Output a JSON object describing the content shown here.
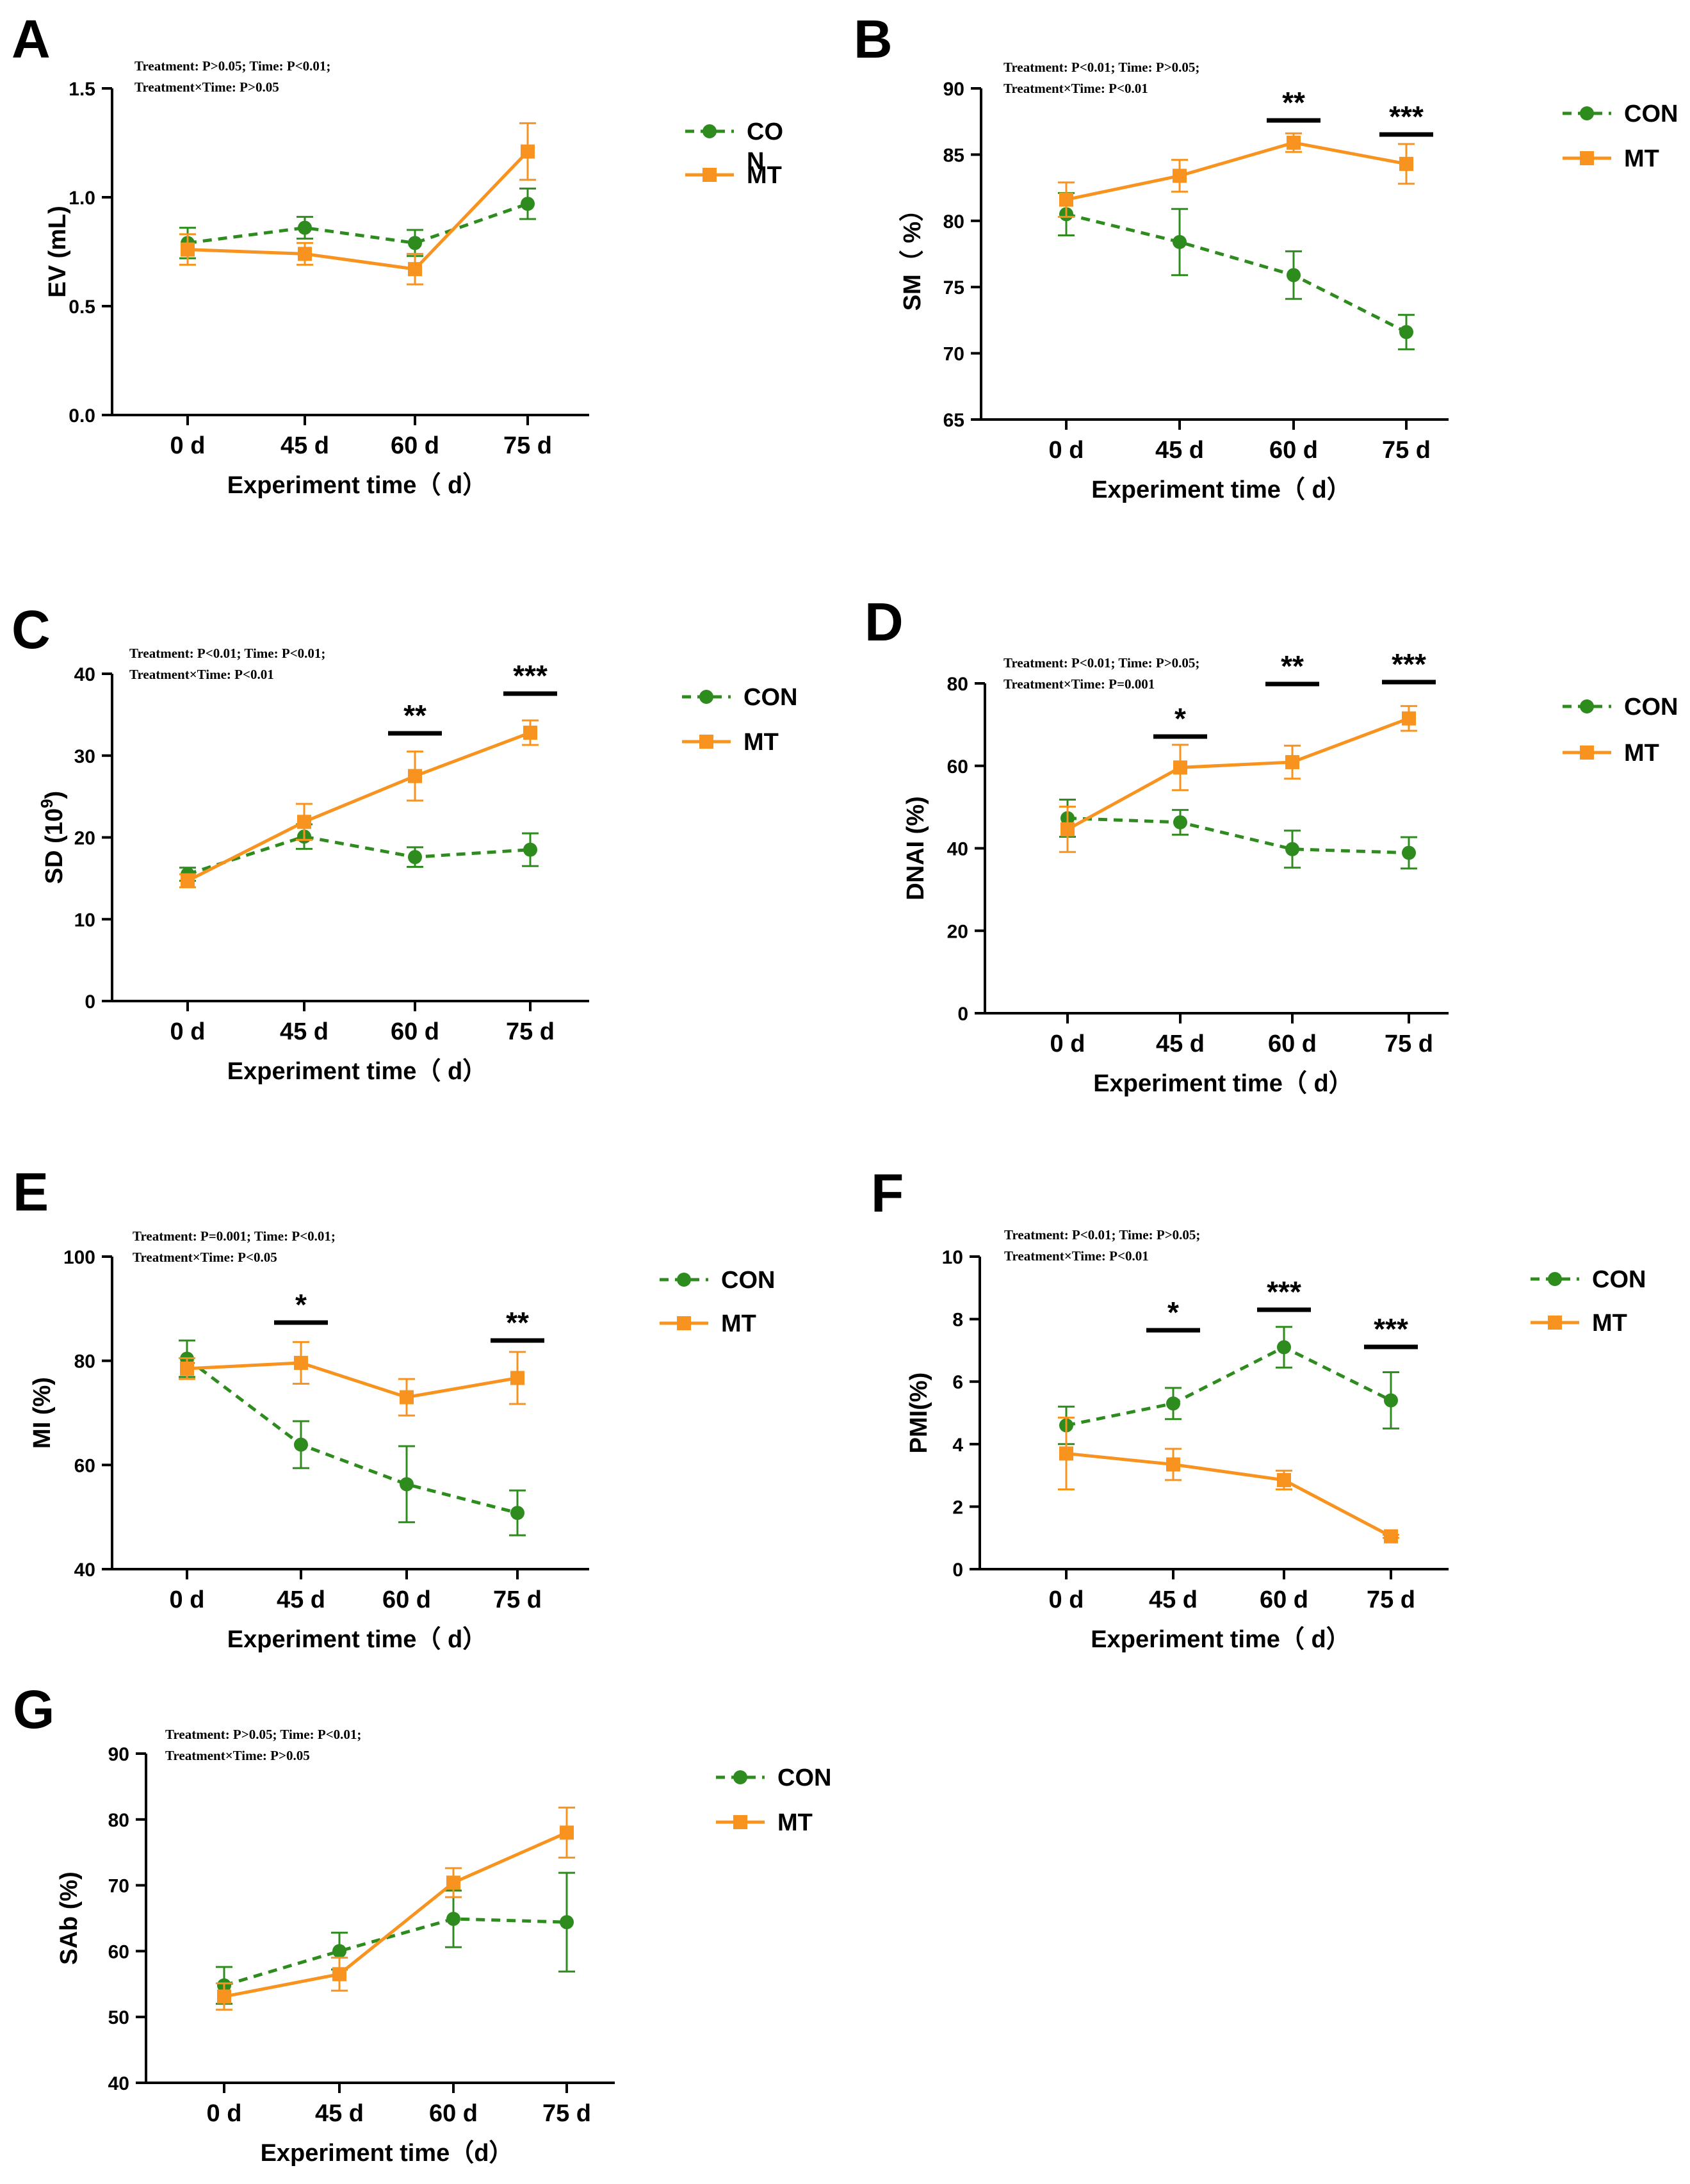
{
  "chart_data": [
    {
      "panel": "A",
      "type": "line",
      "title": "",
      "stats_text": [
        "Treatment: P>0.05; Time: P<0.01;",
        "Treatment×Time: P>0.05"
      ],
      "xlabel": "Experiment time（ d）",
      "ylabel": "EV (mL)",
      "categories": [
        "0 d",
        "45 d",
        "60 d",
        "75 d"
      ],
      "ylim": [
        0,
        1.5
      ],
      "yticks": [
        "0.0",
        "0.5",
        "1.0",
        "1.5"
      ],
      "legend_position": "right",
      "series": [
        {
          "name": "CO\nN",
          "color": "#2E8B1E",
          "style": "dashed",
          "marker": "circle",
          "values": [
            0.79,
            0.86,
            0.79,
            0.97
          ],
          "errors": [
            0.07,
            0.05,
            0.06,
            0.07
          ]
        },
        {
          "name": "MT",
          "color": "#F7931E",
          "style": "solid",
          "marker": "square",
          "values": [
            0.76,
            0.74,
            0.67,
            1.21
          ],
          "errors": [
            0.07,
            0.05,
            0.07,
            0.13
          ]
        }
      ],
      "significance": []
    },
    {
      "panel": "B",
      "type": "line",
      "title": "",
      "stats_text": [
        "Treatment: P<0.01; Time: P>0.05;",
        "Treatment×Time: P<0.01"
      ],
      "xlabel": "Experiment time（ d）",
      "ylabel": "SM（ %）",
      "categories": [
        "0 d",
        "45 d",
        "60 d",
        "75 d"
      ],
      "ylim": [
        65,
        90
      ],
      "yticks": [
        "65",
        "70",
        "75",
        "80",
        "85",
        "90"
      ],
      "legend_position": "right",
      "series": [
        {
          "name": "CON",
          "color": "#2E8B1E",
          "style": "dashed",
          "marker": "circle",
          "values": [
            80.5,
            78.4,
            75.9,
            71.6
          ],
          "errors": [
            1.6,
            2.5,
            1.8,
            1.3
          ]
        },
        {
          "name": "MT",
          "color": "#F7931E",
          "style": "solid",
          "marker": "square",
          "values": [
            81.6,
            83.4,
            85.9,
            84.3
          ],
          "errors": [
            1.3,
            1.2,
            0.7,
            1.5
          ]
        }
      ],
      "significance": [
        {
          "category": "60 d",
          "label": "**"
        },
        {
          "category": "75 d",
          "label": "***"
        }
      ]
    },
    {
      "panel": "C",
      "type": "line",
      "title": "",
      "stats_text": [
        "Treatment: P<0.01; Time: P<0.01;",
        "Treatment×Time: P<0.01"
      ],
      "xlabel": "Experiment time（ d）",
      "ylabel": "SD (10",
      "ylabel_sup": "9",
      "ylabel_end": ")",
      "categories": [
        "0 d",
        "45 d",
        "60 d",
        "75 d"
      ],
      "ylim": [
        0,
        40
      ],
      "yticks": [
        "0",
        "10",
        "20",
        "30",
        "40"
      ],
      "legend_position": "right",
      "series": [
        {
          "name": "CON",
          "color": "#2E8B1E",
          "style": "dashed",
          "marker": "circle",
          "values": [
            15.5,
            20.1,
            17.6,
            18.5
          ],
          "errors": [
            0.8,
            1.5,
            1.2,
            2.0
          ]
        },
        {
          "name": "MT",
          "color": "#F7931E",
          "style": "solid",
          "marker": "square",
          "values": [
            14.7,
            21.9,
            27.5,
            32.8
          ],
          "errors": [
            0.8,
            2.2,
            3.0,
            1.5
          ]
        }
      ],
      "significance": [
        {
          "category": "60 d",
          "label": "**"
        },
        {
          "category": "75 d",
          "label": "***"
        }
      ]
    },
    {
      "panel": "D",
      "type": "line",
      "title": "",
      "stats_text": [
        "Treatment: P<0.01; Time: P>0.05;",
        "Treatment×Time: P=0.001"
      ],
      "xlabel": "Experiment time（ d）",
      "ylabel": "DNAI (%)",
      "categories": [
        "0 d",
        "45 d",
        "60 d",
        "75 d"
      ],
      "ylim": [
        0,
        80
      ],
      "yticks": [
        "0",
        "20",
        "40",
        "60",
        "80"
      ],
      "legend_position": "right",
      "series": [
        {
          "name": "CON",
          "color": "#2E8B1E",
          "style": "dashed",
          "marker": "circle",
          "values": [
            47.3,
            46.3,
            39.8,
            38.9
          ],
          "errors": [
            4.5,
            3.0,
            4.5,
            3.8
          ]
        },
        {
          "name": "MT",
          "color": "#F7931E",
          "style": "solid",
          "marker": "square",
          "values": [
            44.6,
            59.6,
            60.9,
            71.5
          ],
          "errors": [
            5.5,
            5.5,
            4.0,
            3.0
          ]
        }
      ],
      "significance": [
        {
          "category": "45 d",
          "label": "*"
        },
        {
          "category": "60 d",
          "label": "**"
        },
        {
          "category": "75 d",
          "label": "***"
        }
      ]
    },
    {
      "panel": "E",
      "type": "line",
      "title": "",
      "stats_text": [
        "Treatment: P=0.001; Time: P<0.01;",
        "Treatment×Time: P<0.05"
      ],
      "xlabel": "Experiment time（ d）",
      "ylabel": "MI (%)",
      "categories": [
        "0 d",
        "45 d",
        "60 d",
        "75 d"
      ],
      "ylim": [
        40,
        100
      ],
      "yticks": [
        "40",
        "60",
        "80",
        "100"
      ],
      "legend_position": "right",
      "series": [
        {
          "name": "CON",
          "color": "#2E8B1E",
          "style": "dashed",
          "marker": "circle",
          "values": [
            80.4,
            63.9,
            56.3,
            50.8
          ],
          "errors": [
            3.5,
            4.5,
            7.3,
            4.3
          ]
        },
        {
          "name": "MT",
          "color": "#F7931E",
          "style": "solid",
          "marker": "square",
          "values": [
            78.5,
            79.6,
            73.0,
            76.7
          ],
          "errors": [
            2.0,
            4.0,
            3.5,
            5.0
          ]
        }
      ],
      "significance": [
        {
          "category": "45 d",
          "label": "*"
        },
        {
          "category": "75 d",
          "label": "**"
        }
      ]
    },
    {
      "panel": "F",
      "type": "line",
      "title": "",
      "stats_text": [
        "Treatment: P<0.01; Time: P>0.05;",
        "Treatment×Time: P<0.01"
      ],
      "xlabel": "Experiment time（ d）",
      "ylabel": "PMI(%)",
      "categories": [
        "0 d",
        "45 d",
        "60 d",
        "75 d"
      ],
      "ylim": [
        0,
        10
      ],
      "yticks": [
        "0",
        "2",
        "4",
        "6",
        "8",
        "10"
      ],
      "legend_position": "right",
      "series": [
        {
          "name": "CON",
          "color": "#2E8B1E",
          "style": "dashed",
          "marker": "circle",
          "values": [
            4.6,
            5.3,
            7.1,
            5.4
          ],
          "errors": [
            0.6,
            0.5,
            0.65,
            0.9
          ]
        },
        {
          "name": "MT",
          "color": "#F7931E",
          "style": "solid",
          "marker": "square",
          "values": [
            3.7,
            3.35,
            2.85,
            1.05
          ],
          "errors": [
            1.15,
            0.5,
            0.3,
            0.05
          ]
        }
      ],
      "significance": [
        {
          "category": "45 d",
          "label": "*"
        },
        {
          "category": "60 d",
          "label": "***"
        },
        {
          "category": "75 d",
          "label": "***"
        }
      ]
    },
    {
      "panel": "G",
      "type": "line",
      "title": "",
      "stats_text": [
        "Treatment: P>0.05; Time: P<0.01;",
        "Treatment×Time: P>0.05"
      ],
      "xlabel": "Experiment time（d）",
      "ylabel": "SAb (%)",
      "categories": [
        "0 d",
        "45 d",
        "60 d",
        "75 d"
      ],
      "ylim": [
        40,
        90
      ],
      "yticks": [
        "40",
        "50",
        "60",
        "70",
        "80",
        "90"
      ],
      "legend_position": "right",
      "series": [
        {
          "name": "CON",
          "color": "#2E8B1E",
          "style": "dashed",
          "marker": "circle",
          "values": [
            54.8,
            60.0,
            64.9,
            64.4
          ],
          "errors": [
            2.8,
            2.8,
            4.3,
            7.5
          ]
        },
        {
          "name": "MT",
          "color": "#F7931E",
          "style": "solid",
          "marker": "square",
          "values": [
            53.1,
            56.5,
            70.4,
            78.0
          ],
          "errors": [
            2.0,
            2.5,
            2.2,
            3.8
          ]
        }
      ],
      "significance": []
    }
  ]
}
